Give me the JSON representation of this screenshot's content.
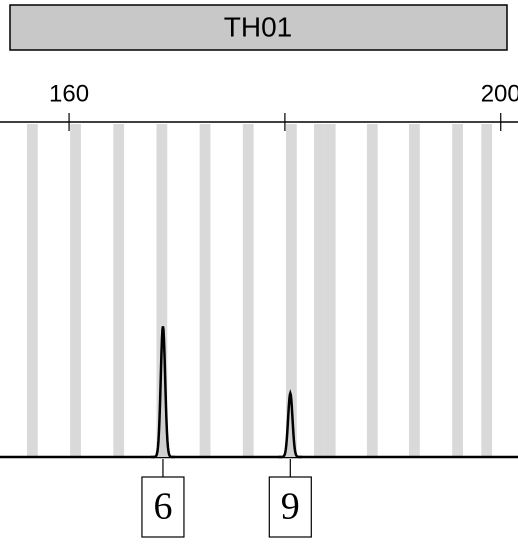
{
  "chart_data": {
    "type": "electropherogram",
    "title": "TH01",
    "xlim": [
      153.6,
      201.6
    ],
    "xticks": [
      160,
      200
    ],
    "minor_xticks": [
      180
    ],
    "ylim": [
      0,
      100
    ],
    "allele_bins": [
      156.6,
      160.6,
      164.6,
      168.6,
      172.6,
      176.6,
      180.6,
      183.2,
      184.2,
      188.1,
      192.0,
      196.0,
      198.7
    ],
    "bin_width": 1.0,
    "bin_color": "#d9d9d9",
    "peaks": {
      "x": [
        168.7,
        180.5
      ],
      "values": [
        39,
        19
      ],
      "labels": [
        "6",
        "9"
      ]
    },
    "color": "#000000"
  }
}
